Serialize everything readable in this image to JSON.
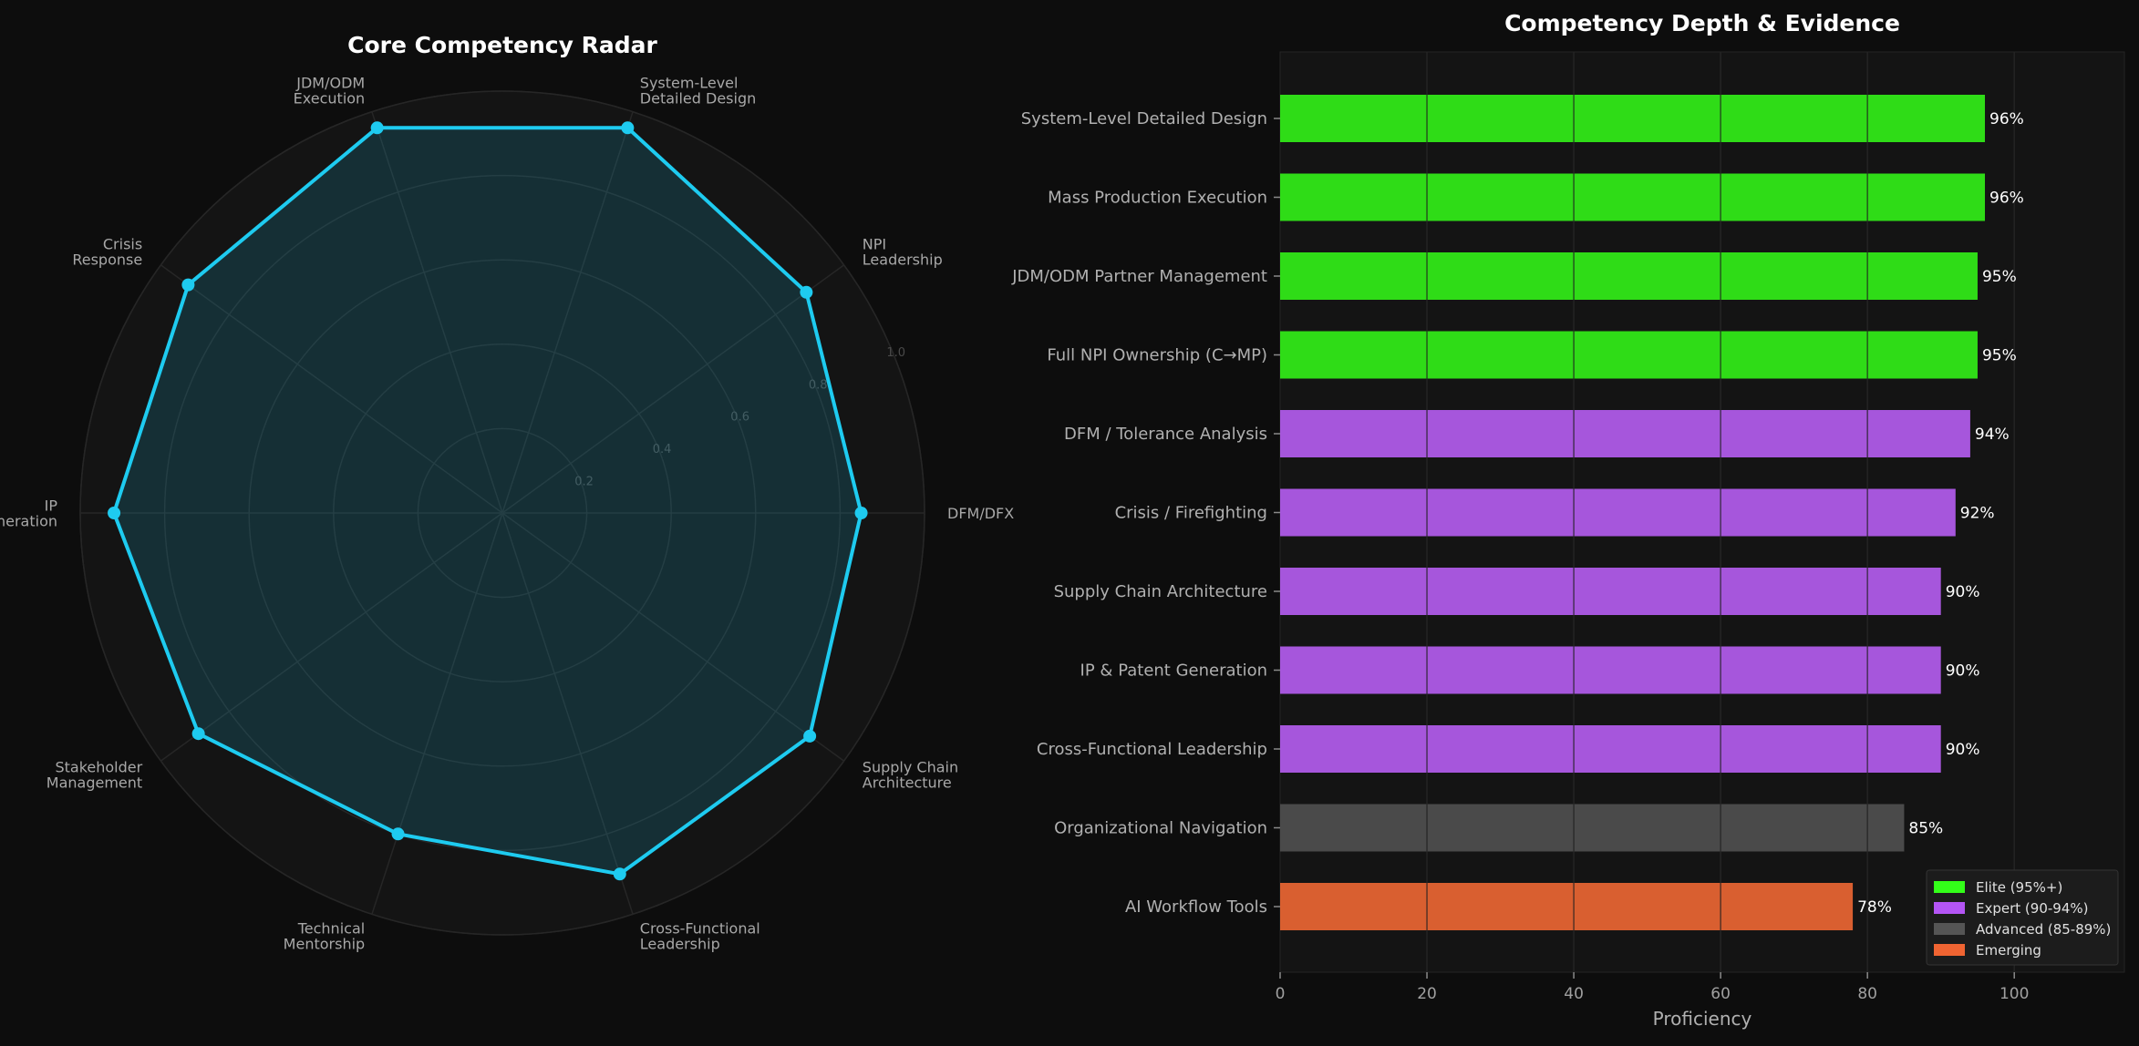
{
  "colors": {
    "background": "#0d0d0d",
    "panel": "#141414",
    "grid": "#2a2a2a",
    "radar_line": "#1ecbf0",
    "radar_fill": "#0e3a40",
    "text": "#b0b0b0",
    "title": "#ffffff"
  },
  "chart_data": [
    {
      "type": "radar",
      "title": "Core Competency Radar",
      "axes": [
        "DFM/DFX",
        "NPI\nLeadership",
        "System-Level\nDetailed Design",
        "JDM/ODM\nExecution",
        "Crisis\nResponse",
        "IP\nGeneration",
        "Stakeholder\nManagement",
        "Technical\nMentorship",
        "Cross-Functional\nLeadership",
        "Supply Chain\nArchitecture"
      ],
      "values": [
        0.85,
        0.89,
        0.96,
        0.96,
        0.92,
        0.92,
        0.89,
        0.8,
        0.9,
        0.9
      ],
      "r_ticks": [
        "0.2",
        "0.4",
        "0.6",
        "0.8",
        "1.0"
      ],
      "r_range": [
        0,
        1.0
      ],
      "grid": true
    },
    {
      "type": "bar",
      "orientation": "horizontal",
      "title": "Competency Depth & Evidence",
      "categories": [
        "System-Level Detailed Design",
        "Mass Production Execution",
        "JDM/ODM Partner Management",
        "Full NPI Ownership (C→MP)",
        "DFM / Tolerance Analysis",
        "Crisis / Firefighting",
        "Supply Chain Architecture",
        "IP & Patent Generation",
        "Cross-Functional Leadership",
        "Organizational Navigation",
        "AI Workflow Tools"
      ],
      "values": [
        96,
        96,
        95,
        95,
        94,
        92,
        90,
        90,
        90,
        85,
        78
      ],
      "value_labels": [
        "96%",
        "96%",
        "95%",
        "95%",
        "94%",
        "92%",
        "90%",
        "90%",
        "90%",
        "85%",
        "78%"
      ],
      "tiers": [
        "elite",
        "elite",
        "elite",
        "elite",
        "expert",
        "expert",
        "expert",
        "expert",
        "expert",
        "advanced",
        "emerging"
      ],
      "xlabel": "Proficiency",
      "xlim": [
        0,
        115
      ],
      "xticks": [
        0,
        20,
        40,
        60,
        80,
        100
      ],
      "grid": true,
      "legend": {
        "placement": "lower-right",
        "entries": [
          {
            "tier": "elite",
            "label": "Elite (95%+)",
            "color": "#33ff19"
          },
          {
            "tier": "expert",
            "label": "Expert (90-94%)",
            "color": "#b455f5"
          },
          {
            "tier": "advanced",
            "label": "Advanced (85-89%)",
            "color": "#555555"
          },
          {
            "tier": "emerging",
            "label": "Emerging",
            "color": "#f06432"
          }
        ]
      },
      "bar_colors": {
        "elite": "#2fdc17",
        "expert": "#a656dc",
        "advanced": "#4a4a4a",
        "emerging": "#d95f30"
      }
    }
  ]
}
